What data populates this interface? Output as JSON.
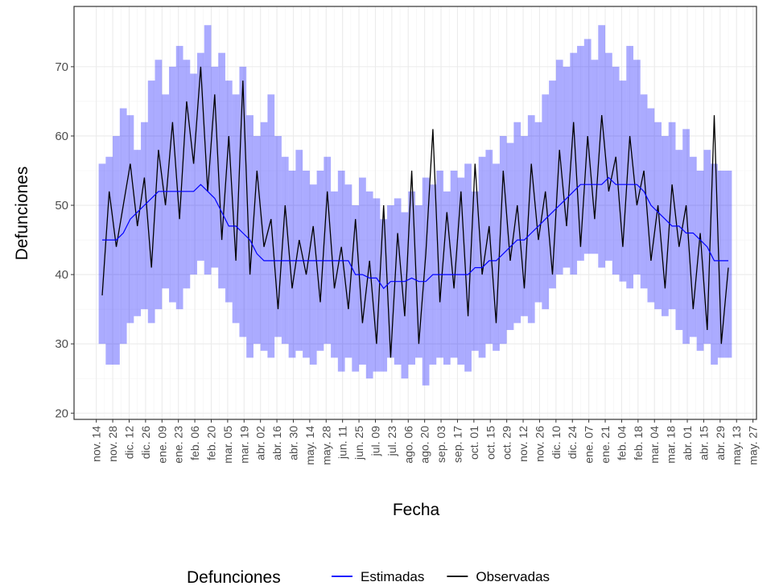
{
  "chart_data": {
    "type": "line",
    "x_label": "Fecha",
    "y_label": "Defunciones",
    "legend_title": "Defunciones",
    "legend": "bottom",
    "grid": true,
    "x": [
      5,
      11,
      17,
      23,
      29,
      35,
      41,
      47,
      53,
      59,
      65,
      71,
      77,
      83,
      89,
      95,
      101,
      107,
      113,
      119,
      125,
      131,
      137,
      143,
      149,
      155,
      161,
      167,
      173,
      179,
      185,
      191,
      197,
      203,
      209,
      215,
      221,
      227,
      233,
      239,
      245,
      251,
      257,
      263,
      269,
      275,
      281,
      287,
      293,
      299,
      305,
      311,
      317,
      323,
      329,
      335,
      341,
      347,
      353,
      359,
      365,
      371,
      377,
      383,
      389,
      395,
      401,
      407,
      413,
      419,
      425,
      431,
      437,
      443,
      449,
      455,
      461,
      467,
      473,
      479,
      485,
      491,
      497,
      503,
      509,
      515,
      521,
      527,
      533,
      539
    ],
    "series": [
      {
        "name": "Estimadas",
        "color": "#0000ff",
        "band_color": "#0000ff",
        "values": [
          45,
          45,
          45,
          46,
          48,
          49,
          50,
          51,
          52,
          52,
          52,
          52,
          52,
          52,
          53,
          52,
          51,
          49,
          47,
          47,
          46,
          45,
          43,
          42,
          42,
          42,
          42,
          42,
          42,
          42,
          42,
          42,
          42,
          42,
          42,
          42,
          40,
          40,
          39.5,
          39.5,
          38,
          39,
          39,
          39,
          39.5,
          39,
          39,
          40,
          40,
          40,
          40,
          40,
          40,
          41,
          41,
          42,
          42,
          43,
          44,
          45,
          45,
          46,
          47,
          48,
          49,
          50,
          51,
          52,
          53,
          53,
          53,
          53,
          54,
          53,
          53,
          53,
          53,
          52,
          50,
          49,
          48,
          47,
          47,
          46,
          46,
          45,
          44,
          42,
          42,
          42
        ],
        "upper": [
          56,
          57,
          60,
          64,
          63,
          58,
          62,
          68,
          71,
          66,
          70,
          73,
          71,
          69,
          72,
          76,
          70,
          72,
          68,
          66,
          70,
          63,
          60,
          62,
          66,
          60,
          57,
          55,
          58,
          55,
          53,
          55,
          57,
          52,
          55,
          53,
          50,
          54,
          52,
          51,
          48,
          50,
          51,
          49,
          52,
          50,
          54,
          53,
          55,
          52,
          55,
          54,
          56,
          52,
          57,
          58,
          56,
          60,
          59,
          62,
          60,
          63,
          62,
          66,
          68,
          71,
          70,
          72,
          73,
          74,
          71,
          76,
          72,
          70,
          68,
          73,
          71,
          66,
          64,
          62,
          60,
          62,
          58,
          61,
          57,
          55,
          58,
          56,
          55,
          55
        ],
        "lower": [
          30,
          27,
          27,
          30,
          33,
          34,
          35,
          33,
          35,
          38,
          36,
          35,
          38,
          40,
          42,
          40,
          41,
          38,
          36,
          33,
          31,
          28,
          30,
          29,
          28,
          31,
          30,
          28,
          29,
          28,
          27,
          29,
          30,
          28,
          26,
          28,
          26,
          27,
          25,
          26,
          26,
          28,
          27,
          25,
          27,
          28,
          24,
          27,
          28,
          27,
          28,
          27,
          26,
          29,
          28,
          30,
          29,
          30,
          32,
          33,
          34,
          33,
          36,
          35,
          38,
          40,
          41,
          40,
          42,
          43,
          43,
          41,
          42,
          40,
          39,
          38,
          40,
          38,
          36,
          35,
          34,
          35,
          32,
          30,
          31,
          29,
          30,
          27,
          28,
          28
        ]
      },
      {
        "name": "Observadas",
        "color": "#000000",
        "values": [
          37,
          52,
          44,
          50,
          56,
          47,
          54,
          41,
          58,
          50,
          62,
          48,
          65,
          56,
          70,
          52,
          66,
          45,
          60,
          42,
          68,
          40,
          55,
          44,
          48,
          35,
          50,
          38,
          45,
          40,
          47,
          36,
          52,
          38,
          44,
          35,
          48,
          33,
          42,
          30,
          50,
          28,
          46,
          34,
          55,
          30,
          43,
          61,
          36,
          49,
          38,
          52,
          34,
          56,
          40,
          47,
          33,
          55,
          42,
          50,
          38,
          56,
          45,
          52,
          40,
          58,
          47,
          62,
          44,
          60,
          48,
          63,
          52,
          57,
          44,
          60,
          50,
          55,
          42,
          50,
          38,
          53,
          44,
          50,
          35,
          46,
          32,
          63,
          30,
          41
        ]
      }
    ],
    "xlim": [
      -19,
      563
    ],
    "xticks": [
      {
        "value": 0,
        "label": "nov. 14"
      },
      {
        "value": 14,
        "label": "nov. 28"
      },
      {
        "value": 28,
        "label": "dic. 12"
      },
      {
        "value": 42,
        "label": "dic. 26"
      },
      {
        "value": 56,
        "label": "ene. 09"
      },
      {
        "value": 70,
        "label": "ene. 23"
      },
      {
        "value": 84,
        "label": "feb. 06"
      },
      {
        "value": 98,
        "label": "feb. 20"
      },
      {
        "value": 112,
        "label": "mar. 05"
      },
      {
        "value": 126,
        "label": "mar. 19"
      },
      {
        "value": 140,
        "label": "abr. 02"
      },
      {
        "value": 154,
        "label": "abr. 16"
      },
      {
        "value": 168,
        "label": "abr. 30"
      },
      {
        "value": 182,
        "label": "may. 14"
      },
      {
        "value": 196,
        "label": "may. 28"
      },
      {
        "value": 210,
        "label": "jun. 11"
      },
      {
        "value": 224,
        "label": "jun. 25"
      },
      {
        "value": 238,
        "label": "jul. 09"
      },
      {
        "value": 252,
        "label": "jul. 23"
      },
      {
        "value": 266,
        "label": "ago. 06"
      },
      {
        "value": 280,
        "label": "ago. 20"
      },
      {
        "value": 294,
        "label": "sep. 03"
      },
      {
        "value": 308,
        "label": "sep. 17"
      },
      {
        "value": 322,
        "label": "oct. 01"
      },
      {
        "value": 336,
        "label": "oct. 15"
      },
      {
        "value": 350,
        "label": "oct. 29"
      },
      {
        "value": 364,
        "label": "nov. 12"
      },
      {
        "value": 378,
        "label": "nov. 26"
      },
      {
        "value": 392,
        "label": "dic. 10"
      },
      {
        "value": 406,
        "label": "dic. 24"
      },
      {
        "value": 420,
        "label": "ene. 07"
      },
      {
        "value": 434,
        "label": "ene. 21"
      },
      {
        "value": 448,
        "label": "feb. 04"
      },
      {
        "value": 462,
        "label": "feb. 18"
      },
      {
        "value": 476,
        "label": "mar. 04"
      },
      {
        "value": 490,
        "label": "mar. 18"
      },
      {
        "value": 504,
        "label": "abr. 01"
      },
      {
        "value": 518,
        "label": "abr. 15"
      },
      {
        "value": 532,
        "label": "abr. 29"
      },
      {
        "value": 546,
        "label": "may. 13"
      },
      {
        "value": 560,
        "label": "may. 27"
      }
    ],
    "ylim": [
      19.1,
      78.7
    ],
    "yticks": [
      20,
      30,
      40,
      50,
      60,
      70
    ]
  }
}
